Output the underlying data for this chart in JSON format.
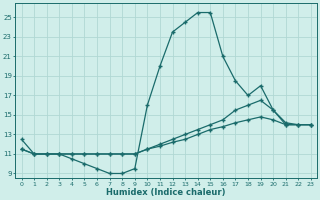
{
  "xlabel": "Humidex (Indice chaleur)",
  "background_color": "#d0eeea",
  "grid_color": "#b0d8d4",
  "line_color": "#1a6b6b",
  "xlim": [
    -0.5,
    23.5
  ],
  "ylim": [
    8.5,
    26.5
  ],
  "yticks": [
    9,
    11,
    13,
    15,
    17,
    19,
    21,
    23,
    25
  ],
  "xticks": [
    0,
    1,
    2,
    3,
    4,
    5,
    6,
    7,
    8,
    9,
    10,
    11,
    12,
    13,
    14,
    15,
    16,
    17,
    18,
    19,
    20,
    21,
    22,
    23
  ],
  "line1_x": [
    0,
    1,
    2,
    3,
    4,
    5,
    6,
    7,
    8,
    9,
    10,
    11,
    12,
    13,
    14,
    15,
    16,
    17,
    18,
    19,
    20,
    21,
    22,
    23
  ],
  "line1_y": [
    12.5,
    11.0,
    11.0,
    11.0,
    10.5,
    10.0,
    9.5,
    9.0,
    9.0,
    9.5,
    16.0,
    20.0,
    23.5,
    24.5,
    25.5,
    25.5,
    21.0,
    18.5,
    17.0,
    18.0,
    15.5,
    14.0,
    14.0,
    14.0
  ],
  "line2_x": [
    0,
    1,
    2,
    3,
    4,
    5,
    6,
    7,
    8,
    9,
    10,
    11,
    12,
    13,
    14,
    15,
    16,
    17,
    18,
    19,
    20,
    21,
    22,
    23
  ],
  "line2_y": [
    11.5,
    11.0,
    11.0,
    11.0,
    11.0,
    11.0,
    11.0,
    11.0,
    11.0,
    11.0,
    11.5,
    12.0,
    12.5,
    13.0,
    13.5,
    14.0,
    14.5,
    15.5,
    16.0,
    16.5,
    15.5,
    14.2,
    14.0,
    14.0
  ],
  "line3_x": [
    0,
    1,
    2,
    3,
    4,
    5,
    6,
    7,
    8,
    9,
    10,
    11,
    12,
    13,
    14,
    15,
    16,
    17,
    18,
    19,
    20,
    21,
    22,
    23
  ],
  "line3_y": [
    11.5,
    11.0,
    11.0,
    11.0,
    11.0,
    11.0,
    11.0,
    11.0,
    11.0,
    11.0,
    11.5,
    11.8,
    12.2,
    12.5,
    13.0,
    13.5,
    13.8,
    14.2,
    14.5,
    14.8,
    14.5,
    14.0,
    14.0,
    14.0
  ]
}
